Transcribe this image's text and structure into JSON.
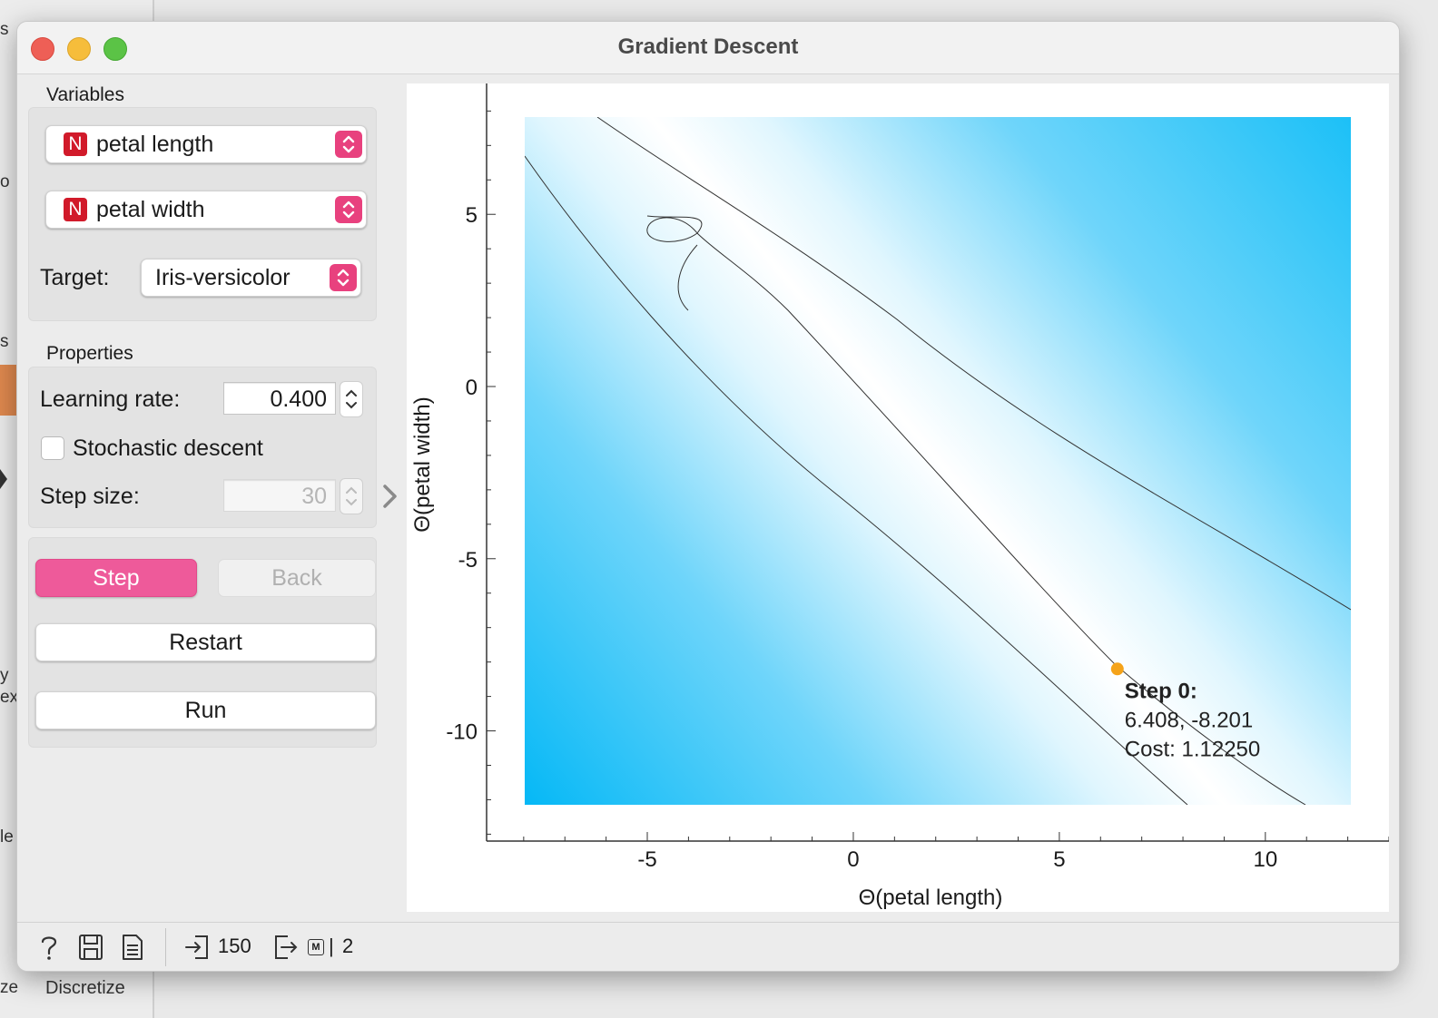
{
  "window": {
    "title": "Gradient Descent"
  },
  "background": {
    "fragments": [
      "s",
      "o",
      "s",
      "y",
      "ex",
      "le",
      "ze"
    ],
    "bottom_label": "Discretize"
  },
  "variables": {
    "section": "Variables",
    "x_var": "petal length",
    "y_var": "petal width",
    "type_badge": "N",
    "target_label": "Target:",
    "target_value": "Iris-versicolor"
  },
  "properties": {
    "section": "Properties",
    "learning_rate_label": "Learning rate:",
    "learning_rate": "0.400",
    "stochastic_label": "Stochastic descent",
    "stochastic_checked": false,
    "step_size_label": "Step size:",
    "step_size": "30"
  },
  "buttons": {
    "step": "Step",
    "back": "Back",
    "restart": "Restart",
    "run": "Run"
  },
  "plot": {
    "xlabel": "Θ(petal length)",
    "ylabel": "Θ(petal width)",
    "x_ticks": [
      -5,
      0,
      5,
      10
    ],
    "y_ticks": [
      5,
      0,
      -5,
      -10
    ],
    "xlim": [
      -8.9,
      13.0
    ],
    "ylim": [
      -13.2,
      8.8
    ],
    "point": {
      "x": 6.408,
      "y": -8.201,
      "color": "#f5a31a"
    },
    "tooltip": {
      "title": "Step 0:",
      "coords": "6.408, -8.201",
      "cost": "Cost: 1.12250"
    },
    "heatmap_color": "#0ab9f7"
  },
  "statusbar": {
    "input_count": "150",
    "output_count": "2",
    "output_badge": "M"
  }
}
